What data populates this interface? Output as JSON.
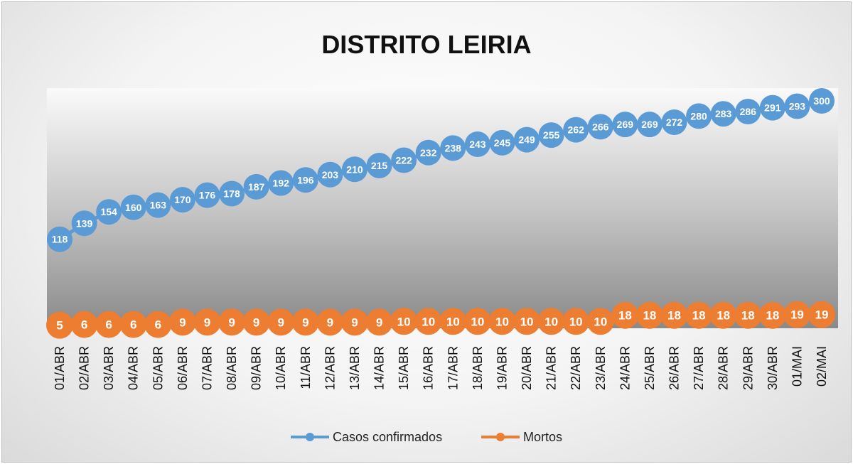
{
  "chart_data": {
    "type": "line",
    "title": "DISTRITO LEIRIA",
    "categories": [
      "01/ABR",
      "02/ABR",
      "03/ABR",
      "04/ABR",
      "05/ABR",
      "06/ABR",
      "07/ABR",
      "08/ABR",
      "09/ABR",
      "10/ABR",
      "11/ABR",
      "12/ABR",
      "13/ABR",
      "14/ABR",
      "15/ABR",
      "16/ABR",
      "17/ABR",
      "18/ABR",
      "19/ABR",
      "20/ABR",
      "21/ABR",
      "22/ABR",
      "23/ABR",
      "24/ABR",
      "25/ABR",
      "26/ABR",
      "27/ABR",
      "28/ABR",
      "29/ABR",
      "30/ABR",
      "01/MAI",
      "02/MAI"
    ],
    "series": [
      {
        "name": "Casos confirmados",
        "color": "#5b9bd5",
        "values": [
          118,
          139,
          154,
          160,
          163,
          170,
          176,
          178,
          187,
          192,
          196,
          203,
          210,
          215,
          222,
          232,
          238,
          243,
          245,
          249,
          255,
          262,
          266,
          269,
          269,
          272,
          280,
          283,
          286,
          291,
          293,
          300
        ]
      },
      {
        "name": "Mortos",
        "color": "#ed7d31",
        "values": [
          5,
          6,
          6,
          6,
          6,
          9,
          9,
          9,
          9,
          9,
          9,
          9,
          9,
          9,
          10,
          10,
          10,
          10,
          10,
          10,
          10,
          10,
          10,
          18,
          18,
          18,
          18,
          18,
          18,
          18,
          19,
          19
        ]
      }
    ],
    "xlabel": "",
    "ylabel": "",
    "grid": false,
    "legend": "bottom"
  }
}
